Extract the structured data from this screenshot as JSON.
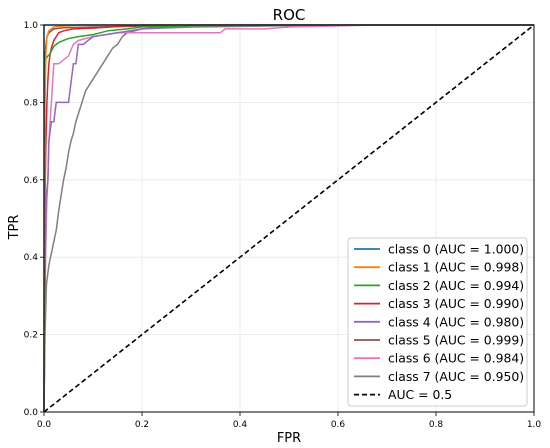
{
  "chart_data": {
    "type": "line",
    "title": "ROC",
    "xlabel": "FPR",
    "ylabel": "TPR",
    "xlim": [
      0,
      1
    ],
    "ylim": [
      0,
      1
    ],
    "xticks": [
      "0.0",
      "0.2",
      "0.4",
      "0.6",
      "0.8",
      "1.0"
    ],
    "yticks": [
      "0.0",
      "0.2",
      "0.4",
      "0.6",
      "0.8",
      "1.0"
    ],
    "grid": true,
    "legend_position": "lower-right",
    "series": [
      {
        "name": "class 0 (AUC = 1.000)",
        "color": "#1f77b4",
        "x": [
          0,
          0,
          1
        ],
        "y": [
          0,
          1,
          1
        ]
      },
      {
        "name": "class 1 (AUC = 0.998)",
        "color": "#ff7f0e",
        "x": [
          0,
          0.002,
          0.004,
          0.006,
          0.01,
          0.015,
          0.02,
          0.035,
          0.05,
          0.07,
          1
        ],
        "y": [
          0,
          0.8,
          0.93,
          0.97,
          0.985,
          0.99,
          0.995,
          0.997,
          0.998,
          1.0,
          1.0
        ]
      },
      {
        "name": "class 2 (AUC = 0.994)",
        "color": "#2ca02c",
        "x": [
          0,
          0.001,
          0.003,
          0.005,
          0.008,
          0.012,
          0.016,
          0.02,
          0.025,
          0.03,
          0.04,
          0.05,
          0.07,
          0.1,
          0.13,
          0.17,
          0.2,
          0.3,
          0.45,
          1
        ],
        "y": [
          0,
          0.9,
          0.91,
          0.915,
          0.92,
          0.925,
          0.935,
          0.945,
          0.95,
          0.955,
          0.96,
          0.965,
          0.97,
          0.975,
          0.985,
          0.99,
          0.995,
          0.998,
          1.0,
          1.0
        ]
      },
      {
        "name": "class 3 (AUC = 0.990)",
        "color": "#d62728",
        "x": [
          0,
          0.002,
          0.004,
          0.006,
          0.008,
          0.01,
          0.012,
          0.015,
          0.02,
          0.025,
          0.03,
          0.04,
          0.06,
          0.1,
          0.2,
          1
        ],
        "y": [
          0,
          0.55,
          0.7,
          0.8,
          0.86,
          0.9,
          0.92,
          0.94,
          0.96,
          0.97,
          0.98,
          0.985,
          0.99,
          0.992,
          1.0,
          1.0
        ]
      },
      {
        "name": "class 4 (AUC = 0.980)",
        "color": "#9467bd",
        "x": [
          0,
          0.004,
          0.008,
          0.01,
          0.015,
          0.02,
          0.025,
          0.03,
          0.05,
          0.055,
          0.06,
          0.065,
          0.07,
          0.08,
          0.1,
          0.2,
          0.3,
          1
        ],
        "y": [
          0,
          0.55,
          0.6,
          0.7,
          0.75,
          0.75,
          0.8,
          0.8,
          0.8,
          0.85,
          0.9,
          0.9,
          0.95,
          0.95,
          0.97,
          0.99,
          1.0,
          1.0
        ]
      },
      {
        "name": "class 5 (AUC = 0.999)",
        "color": "#8c564b",
        "x": [
          0,
          0.002,
          0.004,
          0.006,
          0.01,
          0.02,
          0.04,
          0.1,
          0.2,
          0.45,
          1
        ],
        "y": [
          0,
          0.92,
          0.95,
          0.97,
          0.98,
          0.99,
          0.993,
          0.995,
          0.997,
          1.0,
          1.0
        ]
      },
      {
        "name": "class 6 (AUC = 0.984)",
        "color": "#e377c2",
        "x": [
          0,
          0.003,
          0.006,
          0.008,
          0.01,
          0.015,
          0.02,
          0.025,
          0.03,
          0.04,
          0.05,
          0.06,
          0.07,
          0.1,
          0.15,
          0.2,
          0.36,
          0.37,
          0.45,
          0.5,
          0.68,
          1
        ],
        "y": [
          0,
          0.4,
          0.55,
          0.6,
          0.7,
          0.8,
          0.9,
          0.9,
          0.9,
          0.91,
          0.92,
          0.95,
          0.96,
          0.97,
          0.98,
          0.98,
          0.98,
          0.99,
          0.99,
          0.995,
          1.0,
          1.0
        ]
      },
      {
        "name": "class 7 (AUC = 0.950)",
        "color": "#7f7f7f",
        "x": [
          0,
          0.002,
          0.005,
          0.01,
          0.015,
          0.02,
          0.025,
          0.03,
          0.035,
          0.04,
          0.045,
          0.05,
          0.055,
          0.06,
          0.065,
          0.07,
          0.075,
          0.08,
          0.085,
          0.09,
          0.1,
          0.11,
          0.12,
          0.13,
          0.14,
          0.15,
          0.16,
          0.17,
          0.2,
          0.3,
          0.44,
          0.6,
          1
        ],
        "y": [
          0,
          0.2,
          0.33,
          0.38,
          0.41,
          0.44,
          0.47,
          0.52,
          0.56,
          0.6,
          0.63,
          0.67,
          0.7,
          0.72,
          0.75,
          0.77,
          0.79,
          0.81,
          0.83,
          0.84,
          0.86,
          0.88,
          0.9,
          0.92,
          0.94,
          0.95,
          0.97,
          0.98,
          0.99,
          0.995,
          0.997,
          1.0,
          1.0
        ]
      },
      {
        "name": "AUC = 0.5",
        "color": "#000000",
        "dashed": true,
        "x": [
          0,
          1
        ],
        "y": [
          0,
          1
        ]
      }
    ]
  }
}
